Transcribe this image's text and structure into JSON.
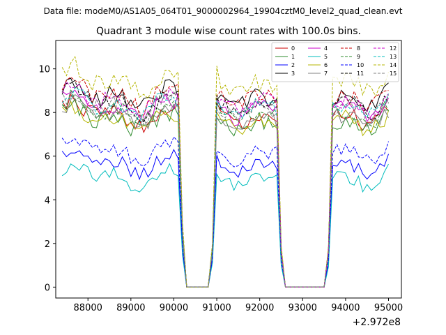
{
  "chart_data": {
    "type": "line",
    "suptitle": "Data file: modeM0/AS1A05_064T01_9000002964_19904cztM0_level2_quad_clean.evt",
    "title": "Quadrant 3 module wise count rates with 100.0s bins.",
    "xlabel": "",
    "ylabel": "",
    "x_offset_label": "+2.972e8",
    "xlim": [
      87250,
      95300
    ],
    "ylim": [
      -0.5,
      11.3
    ],
    "xticks": [
      88000,
      89000,
      90000,
      91000,
      92000,
      93000,
      94000,
      95000
    ],
    "xtick_labels": [
      "88000",
      "89000",
      "90000",
      "91000",
      "92000",
      "93000",
      "94000",
      "95000"
    ],
    "yticks": [
      0,
      2,
      4,
      6,
      8,
      10
    ],
    "ytick_labels": [
      "0",
      "2",
      "4",
      "6",
      "8",
      "10"
    ],
    "legend_position": "upper right",
    "series": [
      {
        "name": "0",
        "color": "#cc0000",
        "dash": false,
        "level": 7.9,
        "amp": 0.6,
        "seed": 1
      },
      {
        "name": "1",
        "color": "#2e8b2e",
        "dash": false,
        "level": 7.7,
        "amp": 0.6,
        "seed": 2
      },
      {
        "name": "2",
        "color": "#0000ff",
        "dash": false,
        "level": 5.7,
        "amp": 0.5,
        "seed": 3
      },
      {
        "name": "3",
        "color": "#000000",
        "dash": false,
        "level": 8.8,
        "amp": 0.6,
        "seed": 4
      },
      {
        "name": "4",
        "color": "#cc00cc",
        "dash": false,
        "level": 8.3,
        "amp": 0.6,
        "seed": 5
      },
      {
        "name": "5",
        "color": "#00bcbc",
        "dash": false,
        "level": 5.1,
        "amp": 0.5,
        "seed": 6
      },
      {
        "name": "6",
        "color": "#b5b500",
        "dash": false,
        "level": 7.7,
        "amp": 0.6,
        "seed": 7
      },
      {
        "name": "7",
        "color": "#808080",
        "dash": false,
        "level": 7.9,
        "amp": 0.6,
        "seed": 8
      },
      {
        "name": "8",
        "color": "#cc0000",
        "dash": true,
        "level": 8.8,
        "amp": 0.6,
        "seed": 9
      },
      {
        "name": "9",
        "color": "#2e8b2e",
        "dash": true,
        "level": 8.1,
        "amp": 0.6,
        "seed": 10
      },
      {
        "name": "10",
        "color": "#0000ff",
        "dash": true,
        "level": 6.3,
        "amp": 0.5,
        "seed": 11
      },
      {
        "name": "11",
        "color": "#000000",
        "dash": true,
        "level": 8.5,
        "amp": 0.6,
        "seed": 12
      },
      {
        "name": "12",
        "color": "#cc00cc",
        "dash": true,
        "level": 8.6,
        "amp": 0.6,
        "seed": 13
      },
      {
        "name": "13",
        "color": "#00bcbc",
        "dash": true,
        "level": 8.4,
        "amp": 0.6,
        "seed": 14
      },
      {
        "name": "14",
        "color": "#b5b500",
        "dash": true,
        "level": 9.5,
        "amp": 0.7,
        "seed": 15
      },
      {
        "name": "15",
        "color": "#808080",
        "dash": true,
        "level": 8.3,
        "amp": 0.6,
        "seed": 16
      }
    ],
    "x_start": 87400,
    "x_step": 100,
    "segments": [
      {
        "from": 87400,
        "to": 90100,
        "state": "active"
      },
      {
        "from": 90200,
        "to": 90300,
        "state": "falling"
      },
      {
        "from": 90300,
        "to": 90800,
        "state": "zero"
      },
      {
        "from": 90900,
        "to": 90900,
        "state": "rising"
      },
      {
        "from": 91000,
        "to": 92400,
        "state": "active"
      },
      {
        "from": 92500,
        "to": 92500,
        "state": "falling"
      },
      {
        "from": 92600,
        "to": 93500,
        "state": "zero"
      },
      {
        "from": 93600,
        "to": 93600,
        "state": "rising"
      },
      {
        "from": 93700,
        "to": 95000,
        "state": "active"
      }
    ]
  }
}
